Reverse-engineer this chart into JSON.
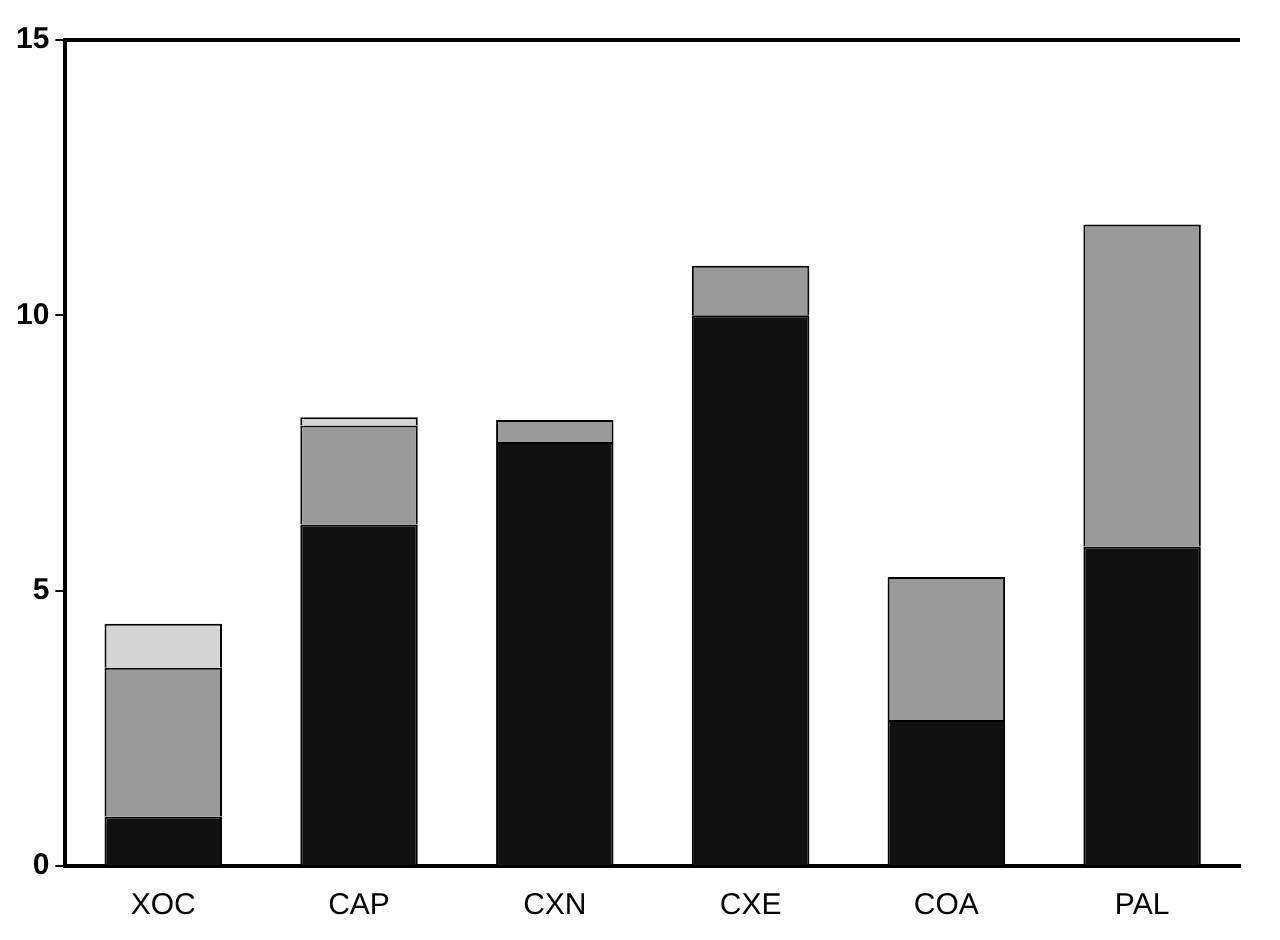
{
  "chart_data": {
    "type": "bar",
    "stacked": true,
    "categories": [
      "XOC",
      "CAP",
      "CXN",
      "CXE",
      "COA",
      "PAL"
    ],
    "series": [
      {
        "color": "#111111",
        "values": [
          0.9,
          6.2,
          7.7,
          10.0,
          2.65,
          5.8
        ]
      },
      {
        "color": "#9a9a9a",
        "values": [
          2.7,
          1.8,
          0.4,
          0.9,
          2.6,
          5.85
        ]
      },
      {
        "color": "#d4d4d4",
        "values": [
          0.8,
          0.15,
          null,
          null,
          null,
          null
        ]
      }
    ],
    "ylim": [
      0,
      15
    ],
    "yticks": [
      0,
      5,
      10,
      15
    ],
    "grid": false,
    "legend": false
  }
}
